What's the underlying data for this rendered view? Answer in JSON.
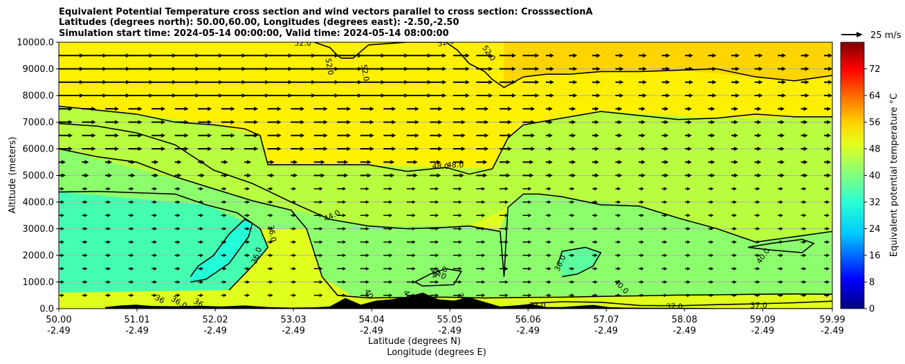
{
  "chart_data": {
    "type": "contour",
    "title": [
      "Equivalent Potential Temperature cross section and wind vectors parallel to cross section: CrosssectionA",
      "Latitudes (degrees north): 50.00,60.00, Longitudes (degrees east): -2.50,-2.50",
      "Simulation start time: 2024-05-14 00:00:00, Valid time: 2024-05-14 08:00:00"
    ],
    "xlabel": "Latitude (degrees N)",
    "xlabel2": "Longitude (degrees E)",
    "ylabel": "Altitude (meters)",
    "xlim": [
      50.0,
      59.99
    ],
    "ylim": [
      0,
      10000
    ],
    "x_ticks": [
      {
        "lat": "50.00",
        "lon": "-2.49",
        "v": 50.0
      },
      {
        "lat": "51.01",
        "lon": "-2.49",
        "v": 51.01
      },
      {
        "lat": "52.02",
        "lon": "-2.49",
        "v": 52.02
      },
      {
        "lat": "53.03",
        "lon": "-2.49",
        "v": 53.03
      },
      {
        "lat": "54.04",
        "lon": "-2.49",
        "v": 54.04
      },
      {
        "lat": "55.05",
        "lon": "-2.49",
        "v": 55.05
      },
      {
        "lat": "56.06",
        "lon": "-2.49",
        "v": 56.06
      },
      {
        "lat": "57.07",
        "lon": "-2.49",
        "v": 57.07
      },
      {
        "lat": "58.08",
        "lon": "-2.49",
        "v": 58.08
      },
      {
        "lat": "59.09",
        "lon": "-2.49",
        "v": 59.09
      },
      {
        "lat": "59.99",
        "lon": "-2.49",
        "v": 59.99
      }
    ],
    "y_ticks": [
      "0.0",
      "1000.0",
      "2000.0",
      "3000.0",
      "4000.0",
      "5000.0",
      "6000.0",
      "7000.0",
      "8000.0",
      "9000.0",
      "10000.0"
    ],
    "grid": "horizontal",
    "colorbar": {
      "label": "Equivalent potential temperature °C",
      "range": [
        0,
        80
      ],
      "ticks": [
        "0",
        "8",
        "16",
        "24",
        "32",
        "40",
        "48",
        "56",
        "64",
        "72"
      ]
    },
    "wind_key": "25 m/s",
    "contours": [
      {
        "level": "52.0",
        "x": [
          53.3,
          53.5,
          53.6,
          53.65,
          53.8,
          54.0,
          54.5,
          55.0,
          55.15,
          55.3,
          55.5,
          55.6,
          55.75,
          56.0,
          56.3,
          56.6,
          57.0,
          57.5,
          58.0,
          58.5,
          59.0,
          59.5,
          59.99
        ],
        "y": [
          10000,
          9800,
          9500,
          9400,
          9400,
          9900,
          10000,
          10000,
          9700,
          9200,
          8900,
          8600,
          8300,
          8700,
          8800,
          8800,
          8900,
          8900,
          8950,
          9000,
          8700,
          8550,
          8750
        ]
      },
      {
        "level": "48.0",
        "x": [
          50.0,
          50.5,
          51.0,
          51.5,
          52.0,
          52.4,
          52.6,
          52.7,
          53.0,
          53.5,
          54.0,
          54.5,
          55.0,
          55.3,
          55.6,
          55.8,
          56.0,
          56.5,
          57.0,
          57.5,
          58.0,
          58.5,
          59.0,
          59.5,
          59.99
        ],
        "y": [
          7600,
          7450,
          7300,
          7000,
          6900,
          6750,
          6500,
          5400,
          5400,
          5400,
          5400,
          5150,
          5300,
          5050,
          5250,
          6400,
          6900,
          7150,
          7400,
          7250,
          7100,
          7150,
          7300,
          7200,
          7200
        ]
      },
      {
        "level": "44.0",
        "x": [
          50.0,
          50.5,
          51.0,
          51.5,
          52.0,
          52.5,
          53.0,
          53.5,
          54.0,
          54.5,
          55.0,
          55.3,
          55.7,
          55.75,
          55.8,
          56.0,
          56.2,
          56.5,
          57.0,
          57.5,
          58.0,
          58.5,
          59.0,
          59.5,
          59.99
        ],
        "y": [
          6950,
          6850,
          6600,
          6150,
          5200,
          4700,
          4000,
          3350,
          3100,
          3000,
          3050,
          3100,
          2900,
          1200,
          3800,
          4300,
          4300,
          4200,
          3900,
          3850,
          3400,
          3000,
          2500,
          2700,
          2900
        ]
      },
      {
        "level": "40.0",
        "x": [
          50.0,
          50.5,
          51.0,
          51.5,
          52.0,
          52.5,
          53.0,
          53.2,
          53.4,
          53.6,
          53.8,
          54.0,
          54.5,
          55.0,
          55.5,
          56.0,
          56.5,
          57.0,
          57.5,
          58.0,
          58.5,
          59.0,
          59.5,
          59.99
        ],
        "y": [
          6000,
          5700,
          5500,
          4950,
          4500,
          4050,
          3700,
          3000,
          1200,
          500,
          450,
          400,
          420,
          430,
          400,
          420,
          430,
          460,
          480,
          510,
          520,
          540,
          550,
          540
        ]
      },
      {
        "level": "40.0",
        "x": [
          50.0,
          50.5,
          51.0,
          51.5,
          51.9,
          52.3,
          52.6,
          52.7,
          52.5,
          52.2
        ],
        "y": [
          4380,
          4400,
          4350,
          4300,
          3900,
          3600,
          3000,
          2300,
          1600,
          700
        ]
      },
      {
        "level": "36.0",
        "x": [
          51.7,
          51.8,
          52.0,
          52.2,
          52.4,
          52.5,
          52.45,
          52.2,
          51.9,
          51.7
        ],
        "y": [
          1200,
          1600,
          2000,
          2800,
          3350,
          3200,
          2700,
          1700,
          1100,
          1000
        ]
      },
      {
        "level": "36.0",
        "x": [
          56.5,
          56.7,
          56.9,
          57.0,
          56.8,
          56.5,
          56.45
        ],
        "y": [
          1200,
          1300,
          1600,
          2100,
          2300,
          2150,
          1700
        ]
      },
      {
        "level": "40.0",
        "x": [
          54.6,
          54.8,
          55.0,
          55.2,
          55.1,
          54.7,
          54.6
        ],
        "y": [
          1000,
          1300,
          1500,
          1400,
          900,
          850,
          1000
        ]
      },
      {
        "level": "40.0",
        "x": [
          58.9,
          59.2,
          59.6,
          59.75,
          59.6,
          59.2,
          58.9
        ],
        "y": [
          2300,
          2450,
          2600,
          2450,
          2100,
          2200,
          2300
        ]
      },
      {
        "level": "37.0",
        "x": [
          56.1,
          56.5,
          57.0,
          57.5,
          58.0,
          58.5,
          59.0,
          59.5,
          59.99
        ],
        "y": [
          200,
          260,
          240,
          120,
          110,
          150,
          180,
          220,
          280
        ]
      }
    ],
    "contour_labels": [
      {
        "text": "52.0",
        "x": 53.15,
        "y": 9950,
        "rot": 0
      },
      {
        "text": "52.0",
        "x": 53.49,
        "y": 9080,
        "rot": 80
      },
      {
        "text": "52.0",
        "x": 53.95,
        "y": 8850,
        "rot": 80
      },
      {
        "text": "52.0",
        "x": 55.0,
        "y": 9980,
        "rot": -10
      },
      {
        "text": "52.0",
        "x": 55.55,
        "y": 9580,
        "rot": 55
      },
      {
        "text": "48.0",
        "x": 54.93,
        "y": 5330,
        "rot": 0
      },
      {
        "text": "48.0",
        "x": 55.12,
        "y": 5380,
        "rot": 0
      },
      {
        "text": "44.0",
        "x": 53.53,
        "y": 3470,
        "rot": -25
      },
      {
        "text": "36.0",
        "x": 52.75,
        "y": 2820,
        "rot": 80
      },
      {
        "text": "36.0",
        "x": 52.56,
        "y": 1990,
        "rot": -70
      },
      {
        "text": "40.0",
        "x": 54.9,
        "y": 1310,
        "rot": 30
      },
      {
        "text": "40.0",
        "x": 54.92,
        "y": 1340,
        "rot": -30
      },
      {
        "text": "36.0",
        "x": 56.48,
        "y": 1700,
        "rot": -65
      },
      {
        "text": "40.0",
        "x": 57.26,
        "y": 820,
        "rot": 45
      },
      {
        "text": "40.0",
        "x": 59.1,
        "y": 1970,
        "rot": -55
      },
      {
        "text": "37.0",
        "x": 56.18,
        "y": 100,
        "rot": 0
      },
      {
        "text": "37.0",
        "x": 57.95,
        "y": 60,
        "rot": 0
      },
      {
        "text": "37.0",
        "x": 59.04,
        "y": 110,
        "rot": 0
      },
      {
        "text": "36",
        "x": 51.3,
        "y": 340,
        "rot": 30
      },
      {
        "text": "36.0",
        "x": 51.55,
        "y": 220,
        "rot": 30
      },
      {
        "text": "36",
        "x": 51.8,
        "y": 200,
        "rot": 30
      },
      {
        "text": "40",
        "x": 54.0,
        "y": 550,
        "rot": 60
      },
      {
        "text": "40",
        "x": 54.5,
        "y": 500,
        "rot": 60
      },
      {
        "text": "36",
        "x": 55.2,
        "y": 400,
        "rot": 60
      }
    ],
    "terrain": {
      "x": [
        50.6,
        50.8,
        51.0,
        51.2,
        51.5,
        51.8,
        52.1,
        52.4,
        52.7,
        53.0,
        53.3,
        53.5,
        53.7,
        53.9,
        54.1,
        54.3,
        54.5,
        54.7,
        54.9,
        55.1,
        55.3,
        55.5,
        55.7,
        55.9,
        56.1,
        56.3,
        56.5,
        56.7,
        56.9,
        57.1,
        57.3,
        57.6,
        58.0,
        58.5,
        59.0,
        59.5,
        59.99
      ],
      "y": [
        60,
        120,
        150,
        100,
        90,
        110,
        80,
        120,
        60,
        40,
        50,
        80,
        400,
        150,
        300,
        350,
        450,
        600,
        350,
        300,
        420,
        250,
        80,
        120,
        180,
        60,
        60,
        100,
        140,
        60,
        40,
        30,
        30,
        20,
        20,
        20,
        20
      ]
    }
  }
}
